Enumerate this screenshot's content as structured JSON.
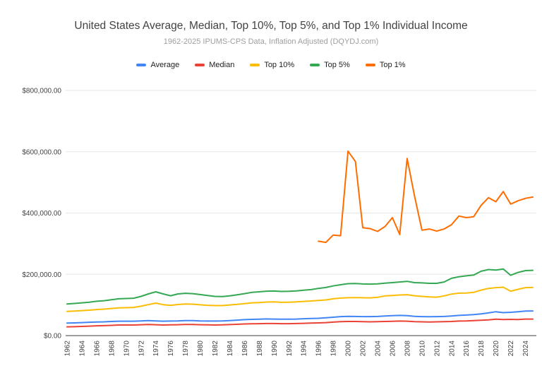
{
  "header": {
    "title": "United States Average, Median, Top 10%, Top 5%, and Top 1% Individual Income",
    "subtitle": "1962-2025 IPUMS-CPS Data, Inflation Adjusted (DQYDJ.com)"
  },
  "style": {
    "title_color": "#424242",
    "subtitle_color": "#9e9e9e",
    "axis_text_color": "#424242",
    "gridline_color": "#e6e6e6",
    "baseline_color": "#9e9e9e"
  },
  "chart_data": {
    "type": "line",
    "title": "United States Average, Median, Top 10%, Top 5%, and Top 1% Individual Income",
    "subtitle": "1962-2025 IPUMS-CPS Data, Inflation Adjusted (DQYDJ.com)",
    "grid": "horizontal",
    "legend_position": "top",
    "x_range": [
      1962,
      2025
    ],
    "x_step": 1,
    "ylim": [
      0,
      800000
    ],
    "ytick_values": [
      0,
      200000,
      400000,
      600000,
      800000
    ],
    "ytick_labels": [
      "$0.00",
      "$200,000.00",
      "$400,000.00",
      "$600,000.00",
      "$800,000.00"
    ],
    "xtick_labels": [
      "1962",
      "1964",
      "1966",
      "1968",
      "1970",
      "1972",
      "1974",
      "1976",
      "1978",
      "1980",
      "1982",
      "1984",
      "1986",
      "1988",
      "1990",
      "1992",
      "1994",
      "1996",
      "1998",
      "2000",
      "2002",
      "2004",
      "2006",
      "2008",
      "2010",
      "2012",
      "2014",
      "2016",
      "2018",
      "2020",
      "2022",
      "2024"
    ],
    "series": [
      {
        "name": "Average",
        "color": "#4285F4",
        "start_year": 1962,
        "values": [
          41000,
          41500,
          42500,
          43500,
          44500,
          45000,
          46000,
          47000,
          47000,
          47000,
          48000,
          49000,
          48000,
          47000,
          47500,
          48000,
          49000,
          49000,
          48000,
          47500,
          47500,
          48000,
          49000,
          50500,
          52000,
          53000,
          53500,
          54500,
          54000,
          53500,
          53500,
          54000,
          55000,
          56000,
          56500,
          58000,
          60000,
          62000,
          63000,
          62500,
          62000,
          62000,
          62500,
          64000,
          65000,
          66000,
          65000,
          63000,
          62000,
          61500,
          62000,
          62500,
          64000,
          66000,
          67000,
          68500,
          71000,
          74000,
          78000,
          75000,
          76000,
          78000,
          80000,
          80500
        ]
      },
      {
        "name": "Median",
        "color": "#EA4335",
        "start_year": 1962,
        "values": [
          28500,
          29000,
          30000,
          31000,
          32000,
          32500,
          33500,
          34500,
          34500,
          34500,
          35500,
          36500,
          35500,
          34500,
          35000,
          35500,
          36500,
          36500,
          35500,
          35000,
          34500,
          35000,
          36000,
          37000,
          38000,
          38500,
          39000,
          39500,
          39500,
          39000,
          39000,
          39500,
          40000,
          41000,
          41500,
          42500,
          44000,
          45500,
          46000,
          46000,
          45500,
          45000,
          45500,
          46000,
          46500,
          47500,
          47000,
          45500,
          45000,
          44500,
          45000,
          45500,
          46000,
          47500,
          48000,
          49000,
          50000,
          51500,
          53500,
          52500,
          53000,
          52500,
          54000,
          54000
        ]
      },
      {
        "name": "Top 10%",
        "color": "#FBBC04",
        "start_year": 1962,
        "values": [
          79000,
          80000,
          81500,
          83000,
          85000,
          86500,
          88500,
          90500,
          91000,
          92000,
          96000,
          101000,
          106000,
          101000,
          99000,
          101500,
          103000,
          102500,
          100500,
          99000,
          98000,
          98000,
          100000,
          102000,
          104500,
          107000,
          108000,
          109500,
          110000,
          108500,
          109000,
          110000,
          111500,
          113000,
          114500,
          116500,
          120000,
          122500,
          123500,
          124000,
          123500,
          123000,
          125000,
          129500,
          131000,
          132500,
          133500,
          130000,
          128000,
          126000,
          125500,
          129500,
          135500,
          138500,
          139000,
          141000,
          148500,
          154000,
          156500,
          158000,
          145000,
          151000,
          156500,
          157000
        ]
      },
      {
        "name": "Top 5%",
        "color": "#34A853",
        "start_year": 1962,
        "values": [
          103000,
          105000,
          107000,
          109000,
          112000,
          114000,
          117000,
          120000,
          121000,
          122000,
          128000,
          136000,
          143000,
          136000,
          130000,
          136000,
          138000,
          137000,
          134000,
          131000,
          128000,
          127500,
          129500,
          133000,
          137000,
          141000,
          143000,
          145000,
          145500,
          144000,
          144500,
          146000,
          148000,
          150000,
          154000,
          157000,
          162000,
          166000,
          169500,
          170000,
          168500,
          168000,
          169000,
          171000,
          173000,
          175000,
          177000,
          173000,
          172000,
          170500,
          170500,
          175000,
          187000,
          192000,
          195000,
          197500,
          210000,
          215500,
          214000,
          217500,
          197000,
          206000,
          212000,
          213000
        ]
      },
      {
        "name": "Top 1%",
        "color": "#FF6D01",
        "start_year": 1996,
        "values": [
          308000,
          304000,
          328000,
          326000,
          602000,
          568000,
          352000,
          349000,
          340000,
          356000,
          385000,
          330000,
          578000,
          455000,
          344000,
          348000,
          341000,
          348000,
          362000,
          390000,
          385000,
          388000,
          425000,
          450000,
          437000,
          470000,
          429000,
          440000,
          448000,
          452000
        ]
      }
    ]
  }
}
